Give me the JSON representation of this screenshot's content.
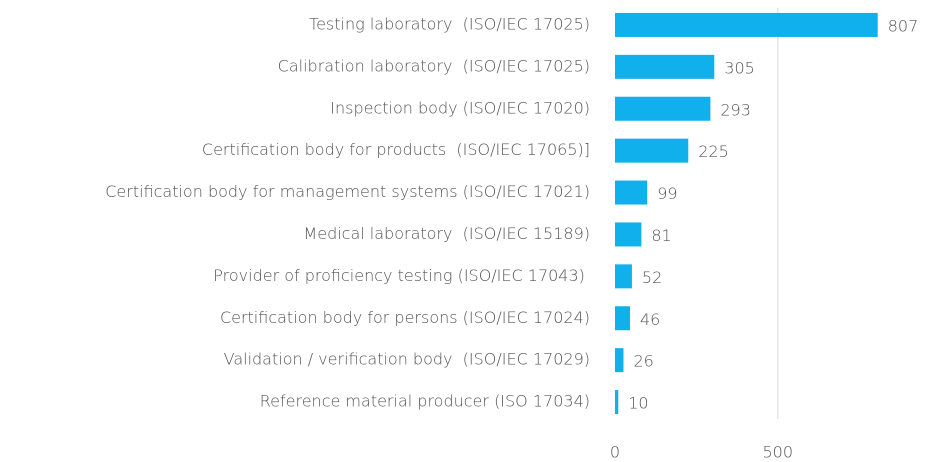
{
  "chart_data": {
    "type": "bar",
    "orientation": "horizontal",
    "categories": [
      "Testing laboratory  (ISO/IEC 17025)",
      "Calibration laboratory  (ISO/IEC 17025)",
      "Inspection body (ISO/IEC 17020)",
      "Certification body for products  (ISO/IEC 17065)]",
      "Certification body for management systems (ISO/IEC 17021)",
      "Medical laboratory  (ISO/IEC 15189)",
      "Provider of proficiency testing (ISO/IEC 17043) ",
      "Certification body for persons (ISO/IEC 17024)",
      "Validation / verification body  (ISO/IEC 17029)",
      "Reference material producer (ISO 17034)"
    ],
    "values": [
      807,
      305,
      293,
      225,
      99,
      81,
      52,
      46,
      26,
      10
    ],
    "color": "#0fb0ec",
    "xlim": [
      0,
      900
    ],
    "xticks": [
      0,
      500
    ],
    "grid": true
  }
}
